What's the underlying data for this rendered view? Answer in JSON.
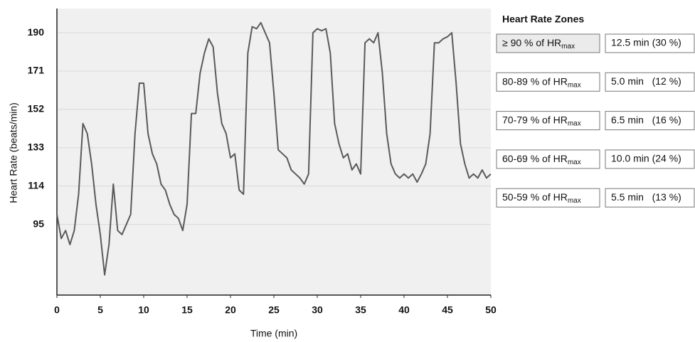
{
  "chart_data": {
    "type": "line",
    "x_label": "Time (min)",
    "y_label": "Heart Rate (beats/min)",
    "x": [
      0,
      0.5,
      1,
      1.5,
      2,
      2.5,
      3,
      3.5,
      4,
      4.5,
      5,
      5.5,
      6,
      6.5,
      7,
      7.5,
      8,
      8.5,
      9,
      9.5,
      10,
      10.5,
      11,
      11.5,
      12,
      12.5,
      13,
      13.5,
      14,
      14.5,
      15,
      15.5,
      16,
      16.5,
      17,
      17.5,
      18,
      18.5,
      19,
      19.5,
      20,
      20.5,
      21,
      21.5,
      22,
      22.5,
      23,
      23.5,
      24,
      24.5,
      25,
      25.5,
      26,
      26.5,
      27,
      27.5,
      28,
      28.5,
      29,
      29.5,
      30,
      30.5,
      31,
      31.5,
      32,
      32.5,
      33,
      33.5,
      34,
      34.5,
      35,
      35.5,
      36,
      36.5,
      37,
      37.5,
      38,
      38.5,
      39,
      39.5,
      40,
      40.5,
      41,
      41.5,
      42,
      42.5,
      43,
      43.5,
      44,
      44.5,
      45,
      45.5,
      46,
      46.5,
      47,
      47.5,
      48,
      48.5,
      49,
      49.5,
      50
    ],
    "series": [
      {
        "name": "Heart Rate",
        "color": "#5a5a5a",
        "values": [
          100,
          88,
          92,
          85,
          92,
          110,
          145,
          140,
          125,
          105,
          90,
          70,
          85,
          115,
          92,
          90,
          95,
          100,
          140,
          165,
          165,
          140,
          130,
          125,
          115,
          112,
          105,
          100,
          98,
          92,
          105,
          150,
          150,
          170,
          180,
          187,
          183,
          160,
          145,
          140,
          128,
          130,
          112,
          110,
          180,
          193,
          192,
          195,
          190,
          185,
          160,
          132,
          130,
          128,
          122,
          120,
          118,
          115,
          120,
          190,
          192,
          191,
          192,
          180,
          145,
          135,
          128,
          130,
          122,
          125,
          120,
          185,
          187,
          185,
          190,
          170,
          140,
          125,
          120,
          118,
          120,
          118,
          120,
          116,
          120,
          125,
          140,
          185,
          185,
          187,
          188,
          190,
          165,
          135,
          125,
          118,
          120,
          118,
          122,
          118,
          120
        ]
      }
    ],
    "xlim": [
      0,
      50
    ],
    "xticks": [
      0,
      5,
      10,
      15,
      20,
      25,
      30,
      35,
      40,
      45,
      50
    ],
    "ylim": [
      60,
      202
    ],
    "yticks": [
      95,
      114,
      133,
      152,
      171,
      190
    ],
    "grid": true
  },
  "zones": {
    "title": "Heart Rate Zones",
    "rows": [
      {
        "label": "≥ 90 % of HR",
        "sub": "max",
        "time": "12.5 min (30 %)"
      },
      {
        "label": "80-89 % of HR",
        "sub": "max",
        "time": "5.0 min   (12 %)"
      },
      {
        "label": "70-79 % of HR",
        "sub": "max",
        "time": "6.5 min   (16 %)"
      },
      {
        "label": "60-69 % of HR",
        "sub": "max",
        "time": "10.0 min (24 %)"
      },
      {
        "label": "50-59 % of HR",
        "sub": "max",
        "time": "5.5 min   (13 %)"
      }
    ]
  }
}
